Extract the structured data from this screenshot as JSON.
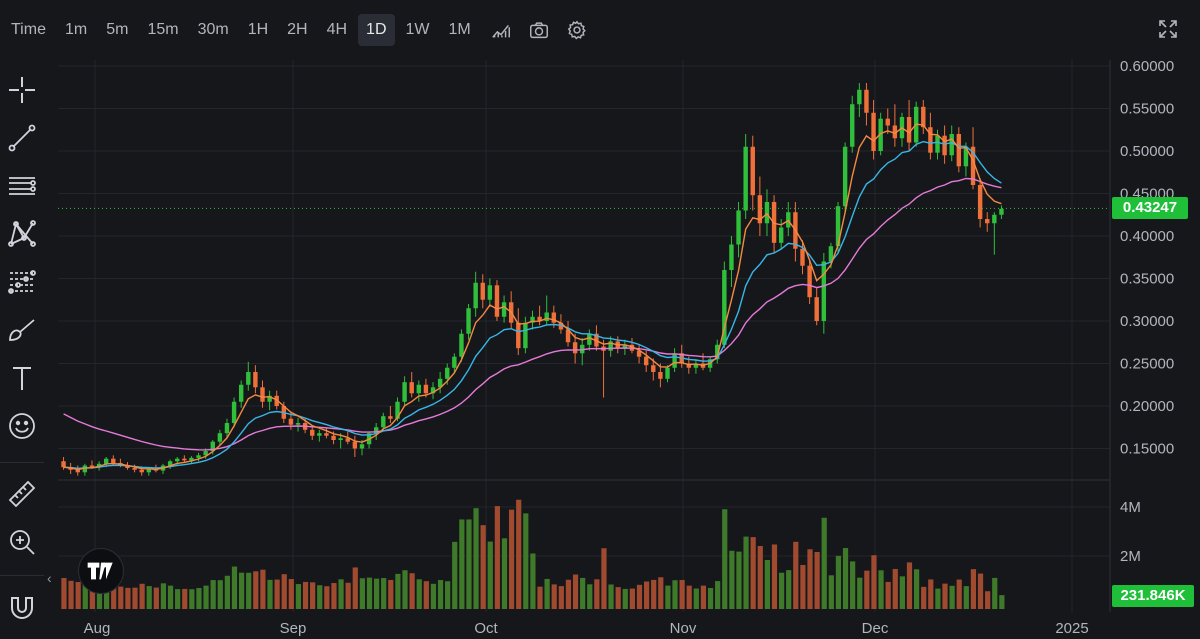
{
  "toolbar": {
    "time_label": "Time",
    "intervals": [
      "1m",
      "5m",
      "15m",
      "30m",
      "1H",
      "2H",
      "4H",
      "1D",
      "1W",
      "1M"
    ],
    "active_interval": "1D",
    "icons": [
      "chart-type-icon",
      "camera-icon",
      "settings-icon",
      "fullscreen-icon"
    ]
  },
  "sidebar": {
    "tools": [
      "crosshair-icon",
      "trend-line-icon",
      "horizontal-lines-icon",
      "pattern-icon",
      "fib-retracement-icon",
      "brush-icon",
      "text-icon",
      "emoji-icon",
      "ruler-icon",
      "zoom-in-icon",
      "magnet-icon"
    ]
  },
  "price_axis": {
    "labels": [
      "0.60000",
      "0.55000",
      "0.50000",
      "0.45000",
      "0.40000",
      "0.35000",
      "0.30000",
      "0.25000",
      "0.20000",
      "0.15000"
    ],
    "last_price": "0.43247"
  },
  "volume_axis": {
    "labels": [
      "4M",
      "2M"
    ],
    "last_volume": "231.846K"
  },
  "time_axis": {
    "labels": [
      "Aug",
      "Sep",
      "Oct",
      "Nov",
      "Dec",
      "2025"
    ]
  },
  "colors": {
    "up": "#2fbf3b",
    "down": "#f0703a",
    "ma_fast": "#f58a42",
    "ma_mid": "#38b6e8",
    "ma_slow": "#e57ad8",
    "background": "#16171b",
    "grid": "#24262c"
  },
  "chart_data": {
    "type": "candlestick",
    "interval": "1D",
    "price_range": [
      0.1,
      0.6
    ],
    "last_price": 0.43247,
    "last_volume": "231.846K",
    "grid": true,
    "x_labels": [
      "Aug",
      "Sep",
      "Oct",
      "Nov",
      "Dec",
      "2025"
    ],
    "series": [
      {
        "type": "candles",
        "ohlc": [
          [
            0.135,
            0.14,
            0.125,
            0.128
          ],
          [
            0.128,
            0.133,
            0.12,
            0.125
          ],
          [
            0.125,
            0.13,
            0.118,
            0.122
          ],
          [
            0.122,
            0.132,
            0.118,
            0.13
          ],
          [
            0.13,
            0.136,
            0.126,
            0.128
          ],
          [
            0.128,
            0.135,
            0.124,
            0.132
          ],
          [
            0.132,
            0.14,
            0.128,
            0.138
          ],
          [
            0.138,
            0.142,
            0.13,
            0.133
          ],
          [
            0.133,
            0.138,
            0.128,
            0.13
          ],
          [
            0.13,
            0.134,
            0.125,
            0.127
          ],
          [
            0.127,
            0.131,
            0.122,
            0.125
          ],
          [
            0.125,
            0.129,
            0.118,
            0.122
          ],
          [
            0.122,
            0.128,
            0.118,
            0.126
          ],
          [
            0.126,
            0.131,
            0.122,
            0.124
          ],
          [
            0.124,
            0.132,
            0.12,
            0.13
          ],
          [
            0.13,
            0.137,
            0.126,
            0.135
          ],
          [
            0.135,
            0.14,
            0.131,
            0.138
          ],
          [
            0.138,
            0.142,
            0.133,
            0.136
          ],
          [
            0.136,
            0.141,
            0.132,
            0.139
          ],
          [
            0.139,
            0.145,
            0.135,
            0.142
          ],
          [
            0.142,
            0.15,
            0.138,
            0.147
          ],
          [
            0.147,
            0.16,
            0.143,
            0.158
          ],
          [
            0.158,
            0.172,
            0.154,
            0.168
          ],
          [
            0.168,
            0.185,
            0.162,
            0.18
          ],
          [
            0.18,
            0.21,
            0.175,
            0.205
          ],
          [
            0.205,
            0.23,
            0.198,
            0.225
          ],
          [
            0.225,
            0.252,
            0.218,
            0.24
          ],
          [
            0.24,
            0.248,
            0.215,
            0.222
          ],
          [
            0.222,
            0.23,
            0.198,
            0.205
          ],
          [
            0.205,
            0.218,
            0.195,
            0.212
          ],
          [
            0.212,
            0.218,
            0.196,
            0.2
          ],
          [
            0.2,
            0.205,
            0.18,
            0.185
          ],
          [
            0.185,
            0.192,
            0.172,
            0.178
          ],
          [
            0.178,
            0.186,
            0.17,
            0.18
          ],
          [
            0.18,
            0.185,
            0.168,
            0.172
          ],
          [
            0.172,
            0.176,
            0.16,
            0.165
          ],
          [
            0.165,
            0.172,
            0.158,
            0.168
          ],
          [
            0.168,
            0.175,
            0.162,
            0.165
          ],
          [
            0.165,
            0.17,
            0.155,
            0.16
          ],
          [
            0.16,
            0.168,
            0.15,
            0.162
          ],
          [
            0.162,
            0.17,
            0.155,
            0.158
          ],
          [
            0.158,
            0.165,
            0.14,
            0.15
          ],
          [
            0.15,
            0.16,
            0.142,
            0.155
          ],
          [
            0.155,
            0.17,
            0.15,
            0.168
          ],
          [
            0.168,
            0.18,
            0.16,
            0.175
          ],
          [
            0.175,
            0.192,
            0.17,
            0.188
          ],
          [
            0.188,
            0.2,
            0.18,
            0.185
          ],
          [
            0.185,
            0.21,
            0.182,
            0.205
          ],
          [
            0.205,
            0.235,
            0.2,
            0.228
          ],
          [
            0.228,
            0.24,
            0.21,
            0.215
          ],
          [
            0.215,
            0.23,
            0.205,
            0.225
          ],
          [
            0.225,
            0.232,
            0.21,
            0.215
          ],
          [
            0.215,
            0.228,
            0.208,
            0.222
          ],
          [
            0.222,
            0.24,
            0.215,
            0.232
          ],
          [
            0.232,
            0.25,
            0.225,
            0.245
          ],
          [
            0.245,
            0.262,
            0.238,
            0.258
          ],
          [
            0.258,
            0.29,
            0.252,
            0.285
          ],
          [
            0.285,
            0.32,
            0.278,
            0.315
          ],
          [
            0.315,
            0.358,
            0.305,
            0.345
          ],
          [
            0.345,
            0.355,
            0.315,
            0.325
          ],
          [
            0.325,
            0.35,
            0.318,
            0.342
          ],
          [
            0.342,
            0.348,
            0.3,
            0.305
          ],
          [
            0.305,
            0.33,
            0.298,
            0.322
          ],
          [
            0.322,
            0.335,
            0.29,
            0.298
          ],
          [
            0.298,
            0.315,
            0.26,
            0.268
          ],
          [
            0.268,
            0.305,
            0.262,
            0.298
          ],
          [
            0.298,
            0.312,
            0.29,
            0.305
          ],
          [
            0.305,
            0.318,
            0.295,
            0.3
          ],
          [
            0.3,
            0.33,
            0.295,
            0.31
          ],
          [
            0.31,
            0.318,
            0.292,
            0.298
          ],
          [
            0.298,
            0.308,
            0.285,
            0.29
          ],
          [
            0.29,
            0.3,
            0.27,
            0.275
          ],
          [
            0.275,
            0.285,
            0.25,
            0.262
          ],
          [
            0.262,
            0.28,
            0.248,
            0.272
          ],
          [
            0.272,
            0.29,
            0.265,
            0.285
          ],
          [
            0.285,
            0.295,
            0.265,
            0.27
          ],
          [
            0.27,
            0.278,
            0.21,
            0.265
          ],
          [
            0.265,
            0.282,
            0.258,
            0.276
          ],
          [
            0.276,
            0.282,
            0.262,
            0.268
          ],
          [
            0.268,
            0.278,
            0.26,
            0.272
          ],
          [
            0.272,
            0.28,
            0.262,
            0.265
          ],
          [
            0.265,
            0.272,
            0.25,
            0.258
          ],
          [
            0.258,
            0.265,
            0.24,
            0.248
          ],
          [
            0.248,
            0.256,
            0.23,
            0.24
          ],
          [
            0.24,
            0.25,
            0.222,
            0.232
          ],
          [
            0.232,
            0.248,
            0.228,
            0.245
          ],
          [
            0.245,
            0.268,
            0.24,
            0.262
          ],
          [
            0.262,
            0.272,
            0.245,
            0.25
          ],
          [
            0.25,
            0.258,
            0.238,
            0.245
          ],
          [
            0.245,
            0.255,
            0.238,
            0.25
          ],
          [
            0.25,
            0.262,
            0.242,
            0.245
          ],
          [
            0.245,
            0.258,
            0.24,
            0.255
          ],
          [
            0.255,
            0.278,
            0.25,
            0.272
          ],
          [
            0.272,
            0.37,
            0.268,
            0.36
          ],
          [
            0.36,
            0.4,
            0.34,
            0.39
          ],
          [
            0.39,
            0.44,
            0.375,
            0.43
          ],
          [
            0.43,
            0.52,
            0.42,
            0.505
          ],
          [
            0.505,
            0.518,
            0.43,
            0.448
          ],
          [
            0.448,
            0.47,
            0.4,
            0.415
          ],
          [
            0.415,
            0.455,
            0.4,
            0.44
          ],
          [
            0.44,
            0.448,
            0.38,
            0.392
          ],
          [
            0.392,
            0.42,
            0.385,
            0.41
          ],
          [
            0.41,
            0.44,
            0.4,
            0.428
          ],
          [
            0.428,
            0.44,
            0.37,
            0.385
          ],
          [
            0.385,
            0.395,
            0.355,
            0.365
          ],
          [
            0.365,
            0.372,
            0.32,
            0.328
          ],
          [
            0.328,
            0.34,
            0.295,
            0.3
          ],
          [
            0.3,
            0.38,
            0.285,
            0.37
          ],
          [
            0.37,
            0.392,
            0.362,
            0.388
          ],
          [
            0.388,
            0.44,
            0.38,
            0.435
          ],
          [
            0.435,
            0.51,
            0.428,
            0.505
          ],
          [
            0.505,
            0.565,
            0.498,
            0.555
          ],
          [
            0.555,
            0.58,
            0.54,
            0.572
          ],
          [
            0.572,
            0.58,
            0.53,
            0.545
          ],
          [
            0.545,
            0.56,
            0.49,
            0.5
          ],
          [
            0.5,
            0.545,
            0.495,
            0.538
          ],
          [
            0.538,
            0.55,
            0.52,
            0.53
          ],
          [
            0.53,
            0.555,
            0.505,
            0.515
          ],
          [
            0.515,
            0.545,
            0.505,
            0.54
          ],
          [
            0.54,
            0.56,
            0.5,
            0.51
          ],
          [
            0.51,
            0.558,
            0.505,
            0.552
          ],
          [
            0.552,
            0.56,
            0.52,
            0.528
          ],
          [
            0.528,
            0.545,
            0.49,
            0.498
          ],
          [
            0.498,
            0.525,
            0.49,
            0.518
          ],
          [
            0.518,
            0.53,
            0.485,
            0.495
          ],
          [
            0.495,
            0.53,
            0.488,
            0.52
          ],
          [
            0.52,
            0.528,
            0.475,
            0.482
          ],
          [
            0.482,
            0.51,
            0.47,
            0.505
          ],
          [
            0.505,
            0.528,
            0.455,
            0.46
          ],
          [
            0.46,
            0.468,
            0.41,
            0.42
          ],
          [
            0.42,
            0.428,
            0.405,
            0.415
          ],
          [
            0.415,
            0.428,
            0.378,
            0.425
          ],
          [
            0.425,
            0.436,
            0.42,
            0.432
          ]
        ]
      },
      {
        "name": "",
        "type": "line",
        "role": "ma_fast"
      },
      {
        "name": "",
        "type": "line",
        "role": "ma_mid"
      },
      {
        "name": "",
        "type": "line",
        "role": "ma_slow"
      }
    ],
    "ma_slow_start": 0.195
  }
}
